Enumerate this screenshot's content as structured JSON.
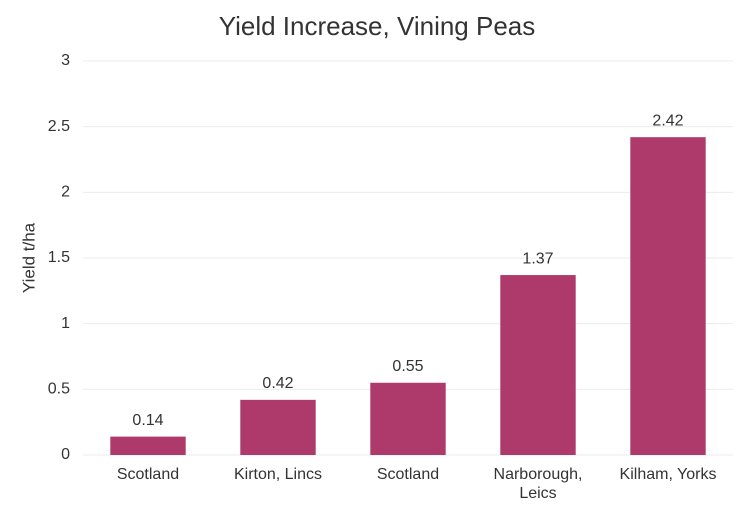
{
  "chart_data": {
    "type": "bar",
    "title": "Yield Increase, Vining Peas",
    "y_label": "Yield t/ha",
    "categories": [
      "Scotland",
      "Kirton, Lincs",
      "Scotland",
      "Narborough, Leics",
      "Kilham, Yorks"
    ],
    "values": [
      0.14,
      0.42,
      0.55,
      1.37,
      2.42
    ],
    "color": "#ad3a6a",
    "ylim": [
      0,
      3
    ],
    "yticks": [
      0,
      0.5,
      1,
      1.5,
      2,
      2.5,
      3
    ],
    "grid": true
  }
}
